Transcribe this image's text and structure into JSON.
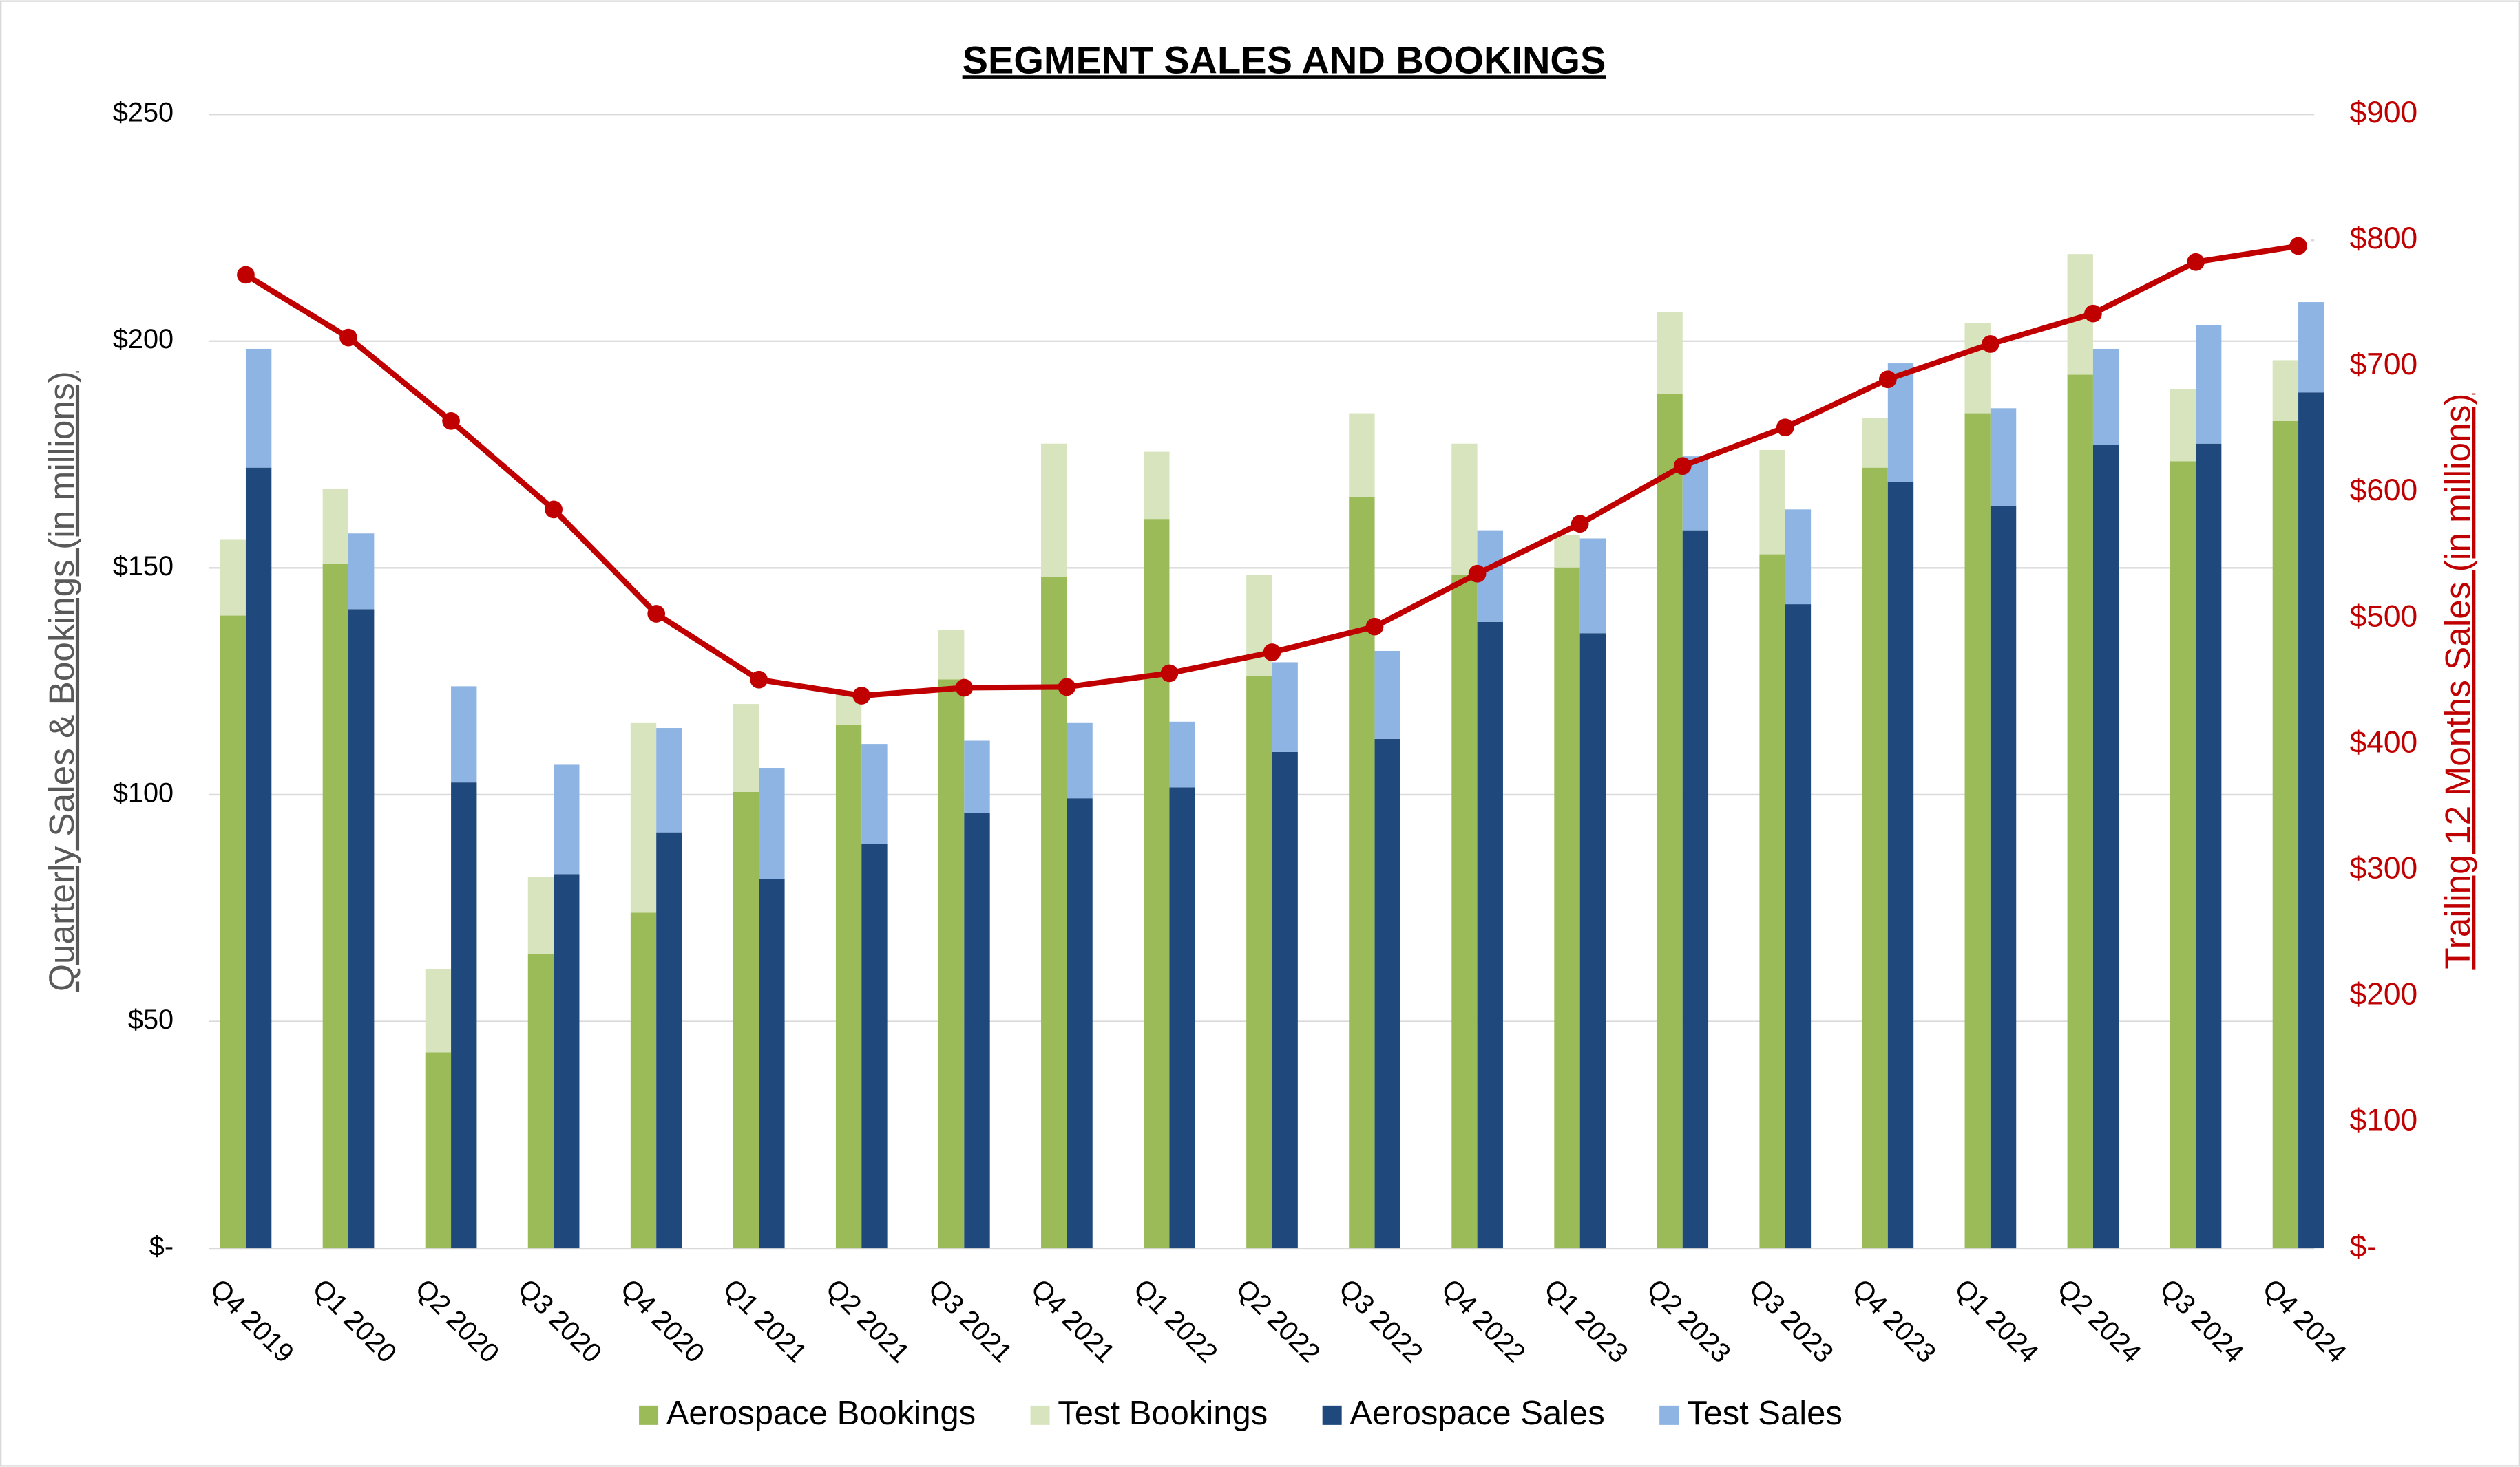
{
  "chart_data": {
    "type": "bar",
    "title": "SEGMENT SALES AND BOOKINGS",
    "y_label": "Quarterly Sales & Bookings (in millions)",
    "y2_label": "Trailing 12 Months Sales (in millions)",
    "categories": [
      "Q4 2019",
      "Q1 2020",
      "Q2 2020",
      "Q3 2020",
      "Q4 2020",
      "Q1 2021",
      "Q2 2021",
      "Q3 2021",
      "Q4 2021",
      "Q1 2022",
      "Q2 2022",
      "Q3 2022",
      "Q4 2022",
      "Q1 2023",
      "Q2 2023",
      "Q3 2023",
      "Q4 2023",
      "Q1 2024",
      "Q2 2024",
      "Q3 2024",
      "Q4 2024"
    ],
    "series": [
      {
        "name": "Aerospace Bookings",
        "color": "#9bbb59",
        "values": [
          139.5,
          150.9,
          43.2,
          64.8,
          74,
          100.6,
          115.4,
          125.4,
          148,
          160.8,
          126.1,
          165.7,
          148.4,
          150.1,
          188.4,
          153,
          172.1,
          184.1,
          192.6,
          173.5,
          182.4
        ]
      },
      {
        "name": "Test Bookings",
        "color": "#d7e4bd",
        "values": [
          16.7,
          16.6,
          18.4,
          17,
          41.8,
          19.4,
          7.5,
          10.9,
          29.4,
          14.8,
          22.3,
          18.4,
          29,
          7.1,
          18,
          23,
          11,
          19.9,
          26.6,
          15.9,
          13.4
        ]
      },
      {
        "name": "Aerospace Sales",
        "color": "#1f497d",
        "values": [
          172.1,
          140.9,
          102.7,
          82.5,
          91.7,
          81.4,
          89.2,
          96,
          99.2,
          101.6,
          109.4,
          112.3,
          138.1,
          135.6,
          158.3,
          142,
          168.9,
          163.6,
          177.1,
          177.4,
          188.7
        ]
      },
      {
        "name": "Test Sales",
        "color": "#8db4e2",
        "values": [
          26.2,
          16.7,
          21.2,
          24.1,
          23,
          24.5,
          22,
          15.9,
          16.6,
          14.5,
          19.8,
          19.4,
          20.2,
          20.9,
          16.3,
          20.9,
          26.2,
          21.6,
          21.2,
          26.2,
          19.9
        ]
      },
      {
        "type": "line",
        "axis": "y2",
        "color": "#c00000",
        "values": [
          772.6,
          722.8,
          656.6,
          586.4,
          503.6,
          451.3,
          438.6,
          444.9,
          445.5,
          456.4,
          473,
          493.4,
          535.4,
          575,
          620.9,
          651.5,
          689.7,
          717.7,
          741.9,
          782.8,
          795.5
        ]
      }
    ],
    "ylim": [
      0,
      250
    ],
    "yticks": [
      {
        "value": 0,
        "label": "$-"
      },
      {
        "value": 50,
        "label": "$50"
      },
      {
        "value": 100,
        "label": "$100"
      },
      {
        "value": 150,
        "label": "$150"
      },
      {
        "value": 200,
        "label": "$200"
      },
      {
        "value": 250,
        "label": "$250"
      }
    ],
    "y2lim": [
      0,
      900
    ],
    "y2ticks": [
      {
        "value": 0,
        "label": "$-"
      },
      {
        "value": 100,
        "label": "$100"
      },
      {
        "value": 200,
        "label": "$200"
      },
      {
        "value": 300,
        "label": "$300"
      },
      {
        "value": 400,
        "label": "$400"
      },
      {
        "value": 500,
        "label": "$500"
      },
      {
        "value": 600,
        "label": "$600"
      },
      {
        "value": 700,
        "label": "$700"
      },
      {
        "value": 800,
        "label": "$800"
      },
      {
        "value": 900,
        "label": "$900"
      }
    ],
    "grid": true,
    "legend": "bottom"
  }
}
